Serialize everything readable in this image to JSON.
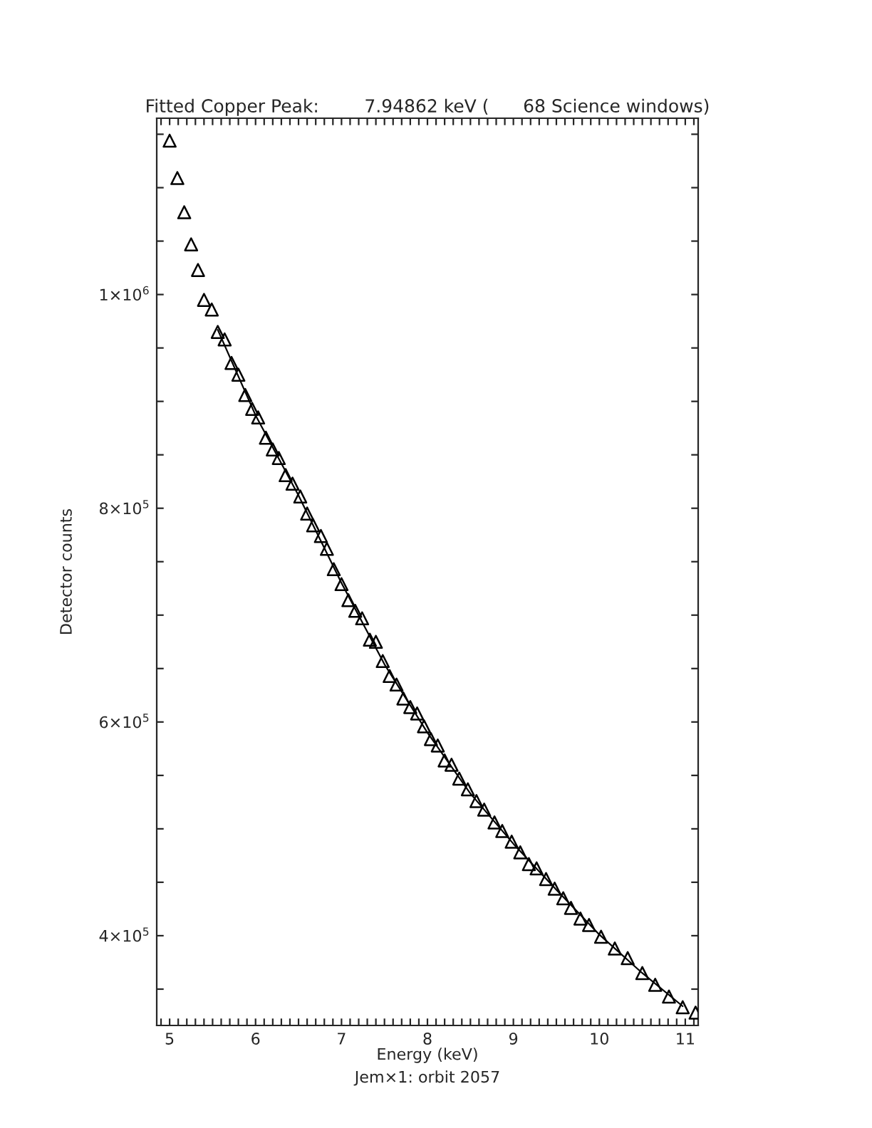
{
  "chart_data": {
    "type": "scatter",
    "title": "Fitted Copper Peak:        7.94862 keV (      68 Science windows)",
    "xlabel": "Energy (keV)",
    "ylabel": "Detector counts",
    "annotations": [
      "Jem×1: orbit 2057"
    ],
    "marker": "triangle",
    "grid": false,
    "xlim": [
      4.85,
      11.15
    ],
    "xticks": [
      5,
      6,
      7,
      8,
      9,
      10,
      11,
      {
        "value": 4.9,
        "label": null
      },
      {
        "value": 5.1,
        "label": null
      },
      {
        "value": 5.2,
        "label": null
      },
      {
        "value": 5.3,
        "label": null
      },
      {
        "value": 5.4,
        "label": null
      },
      {
        "value": 5.5,
        "label": null
      },
      {
        "value": 5.6,
        "label": null
      },
      {
        "value": 5.7,
        "label": null
      },
      {
        "value": 5.8,
        "label": null
      },
      {
        "value": 5.9,
        "label": null
      },
      {
        "value": 6.1,
        "label": null
      },
      {
        "value": 6.2,
        "label": null
      },
      {
        "value": 6.3,
        "label": null
      },
      {
        "value": 6.4,
        "label": null
      },
      {
        "value": 6.5,
        "label": null
      },
      {
        "value": 6.6,
        "label": null
      },
      {
        "value": 6.7,
        "label": null
      },
      {
        "value": 6.8,
        "label": null
      },
      {
        "value": 6.9,
        "label": null
      },
      {
        "value": 7.1,
        "label": null
      },
      {
        "value": 7.2,
        "label": null
      },
      {
        "value": 7.3,
        "label": null
      },
      {
        "value": 7.4,
        "label": null
      },
      {
        "value": 7.5,
        "label": null
      },
      {
        "value": 7.6,
        "label": null
      },
      {
        "value": 7.7,
        "label": null
      },
      {
        "value": 7.8,
        "label": null
      },
      {
        "value": 7.9,
        "label": null
      },
      {
        "value": 8.1,
        "label": null
      },
      {
        "value": 8.2,
        "label": null
      },
      {
        "value": 8.3,
        "label": null
      },
      {
        "value": 8.4,
        "label": null
      },
      {
        "value": 8.5,
        "label": null
      },
      {
        "value": 8.6,
        "label": null
      },
      {
        "value": 8.7,
        "label": null
      },
      {
        "value": 8.8,
        "label": null
      },
      {
        "value": 8.9,
        "label": null
      },
      {
        "value": 9.1,
        "label": null
      },
      {
        "value": 9.2,
        "label": null
      },
      {
        "value": 9.3,
        "label": null
      },
      {
        "value": 9.4,
        "label": null
      },
      {
        "value": 9.5,
        "label": null
      },
      {
        "value": 9.6,
        "label": null
      },
      {
        "value": 9.7,
        "label": null
      },
      {
        "value": 9.8,
        "label": null
      },
      {
        "value": 9.9,
        "label": null
      },
      {
        "value": 10.1,
        "label": null
      },
      {
        "value": 10.2,
        "label": null
      },
      {
        "value": 10.3,
        "label": null
      },
      {
        "value": 10.4,
        "label": null
      },
      {
        "value": 10.5,
        "label": null
      },
      {
        "value": 10.6,
        "label": null
      },
      {
        "value": 10.7,
        "label": null
      },
      {
        "value": 10.8,
        "label": null
      },
      {
        "value": 10.9,
        "label": null
      },
      {
        "value": 11.1,
        "label": null
      }
    ],
    "ylim": [
      316000,
      1165000
    ],
    "yticks": [
      {
        "value": 400000,
        "label": "4×10$^{5}$"
      },
      {
        "value": 600000,
        "label": "6×10$^{5}$"
      },
      {
        "value": 800000,
        "label": "8×10$^{5}$"
      },
      {
        "value": 1000000,
        "label": "1×10$^{6}$"
      },
      {
        "value": 350000,
        "label": null
      },
      {
        "value": 450000,
        "label": null
      },
      {
        "value": 500000,
        "label": null
      },
      {
        "value": 550000,
        "label": null
      },
      {
        "value": 650000,
        "label": null
      },
      {
        "value": 700000,
        "label": null
      },
      {
        "value": 750000,
        "label": null
      },
      {
        "value": 850000,
        "label": null
      },
      {
        "value": 900000,
        "label": null
      },
      {
        "value": 950000,
        "label": null
      },
      {
        "value": 1050000,
        "label": null
      },
      {
        "value": 1100000,
        "label": null
      },
      {
        "value": 1150000,
        "label": null
      }
    ],
    "series": [
      {
        "color": "#000000",
        "x": [
          5.0,
          5.09,
          5.17,
          5.25,
          5.33,
          5.4,
          5.49,
          5.56,
          5.64,
          5.72,
          5.8,
          5.88,
          5.96,
          6.03,
          6.12,
          6.2,
          6.27,
          6.35,
          6.43,
          6.52,
          6.6,
          6.67,
          6.76,
          6.83,
          6.91,
          7.0,
          7.08,
          7.16,
          7.24,
          7.33,
          7.4,
          7.48,
          7.56,
          7.64,
          7.72,
          7.8,
          7.88,
          7.96,
          8.04,
          8.12,
          8.2,
          8.28,
          8.37,
          8.47,
          8.57,
          8.66,
          8.78,
          8.87,
          8.98,
          9.08,
          9.18,
          9.27,
          9.38,
          9.48,
          9.58,
          9.67,
          9.78,
          9.88,
          10.02,
          10.18,
          10.33,
          10.5,
          10.65,
          10.81,
          10.97,
          11.12
        ],
        "values": [
          1144000,
          1109000,
          1077000,
          1047000,
          1023000,
          995000,
          986000,
          965000,
          958000,
          936000,
          925000,
          906000,
          893000,
          885000,
          866000,
          855000,
          847000,
          831000,
          823000,
          811000,
          795000,
          784000,
          774000,
          762000,
          743000,
          729000,
          714000,
          704000,
          697000,
          677000,
          675000,
          657000,
          643000,
          635000,
          622000,
          614000,
          608000,
          596000,
          584000,
          578000,
          564000,
          560000,
          547000,
          537000,
          526000,
          518000,
          506000,
          498000,
          488000,
          478000,
          467000,
          463000,
          453000,
          444000,
          435000,
          426000,
          416000,
          410000,
          399000,
          388000,
          379000,
          365000,
          354000,
          343000,
          333000,
          328000
        ]
      },
      {
        "type": "line",
        "color": "#000000",
        "marker": "none",
        "line_style": "solid",
        "x": [
          5.56,
          6.0,
          6.5,
          7.0,
          7.5,
          8.0,
          8.5,
          9.0,
          9.5,
          10.0,
          10.5,
          10.97
        ],
        "values": [
          967000,
          887000,
          812000,
          730000,
          654000,
          590000,
          533000,
          486000,
          443000,
          401000,
          365000,
          334000
        ]
      }
    ]
  }
}
